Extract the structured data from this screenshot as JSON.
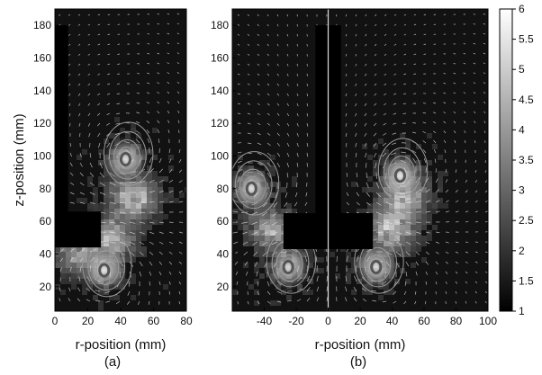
{
  "figure": {
    "colorbar_ticks": [
      "1",
      "1.5",
      "2",
      "2.5",
      "3",
      "3.5",
      "4",
      "4.5",
      "5",
      "5.5",
      "6"
    ]
  },
  "chart_data": [
    {
      "type": "heatmap",
      "panel_label": "(a)",
      "title": "",
      "xlabel": "r-position (mm)",
      "ylabel": "z-position (mm)",
      "xlim": [
        0,
        80
      ],
      "ylim": [
        5,
        190
      ],
      "x_ticks": [
        "0",
        "20",
        "40",
        "60",
        "80"
      ],
      "y_ticks": [
        "20",
        "40",
        "60",
        "80",
        "100",
        "120",
        "140",
        "160",
        "180"
      ],
      "colorscale_range": [
        1,
        6
      ],
      "grid": false,
      "impeller_shaft": {
        "r": [
          0,
          8
        ],
        "z": [
          60,
          180
        ]
      },
      "impeller_blade": {
        "r": [
          0,
          28
        ],
        "z": [
          44,
          66
        ]
      },
      "vortex_centers": [
        {
          "r": 43,
          "z": 98
        },
        {
          "r": 30,
          "z": 30
        }
      ],
      "high_intensity_regions": [
        {
          "r": 48,
          "z": 74,
          "level": 4.5
        },
        {
          "r": 35,
          "z": 50,
          "level": 4.0
        },
        {
          "r": 14,
          "z": 40,
          "level": 3.5
        }
      ]
    },
    {
      "type": "heatmap",
      "panel_label": "(b)",
      "title": "",
      "xlabel": "r-position (mm)",
      "ylabel": "",
      "xlim": [
        -60,
        100
      ],
      "ylim": [
        5,
        190
      ],
      "x_ticks": [
        "-40",
        "-20",
        "0",
        "20",
        "40",
        "60",
        "80",
        "100"
      ],
      "y_ticks": [
        "20",
        "40",
        "60",
        "80",
        "100",
        "120",
        "140",
        "160",
        "180"
      ],
      "colorscale_range": [
        1,
        6
      ],
      "grid": false,
      "impeller_shaft": {
        "r": [
          -8,
          8
        ],
        "z": [
          65,
          180
        ]
      },
      "impeller_blade": {
        "r": [
          -28,
          28
        ],
        "z": [
          43,
          65
        ]
      },
      "vortex_centers": [
        {
          "r": -25,
          "z": 32
        },
        {
          "r": 30,
          "z": 32
        },
        {
          "r": 45,
          "z": 88
        },
        {
          "r": -48,
          "z": 80
        }
      ],
      "high_intensity_regions": [
        {
          "r": -35,
          "z": 55,
          "level": 4.0
        },
        {
          "r": 40,
          "z": 55,
          "level": 4.5
        },
        {
          "r": 48,
          "z": 75,
          "level": 4.0
        }
      ]
    }
  ]
}
